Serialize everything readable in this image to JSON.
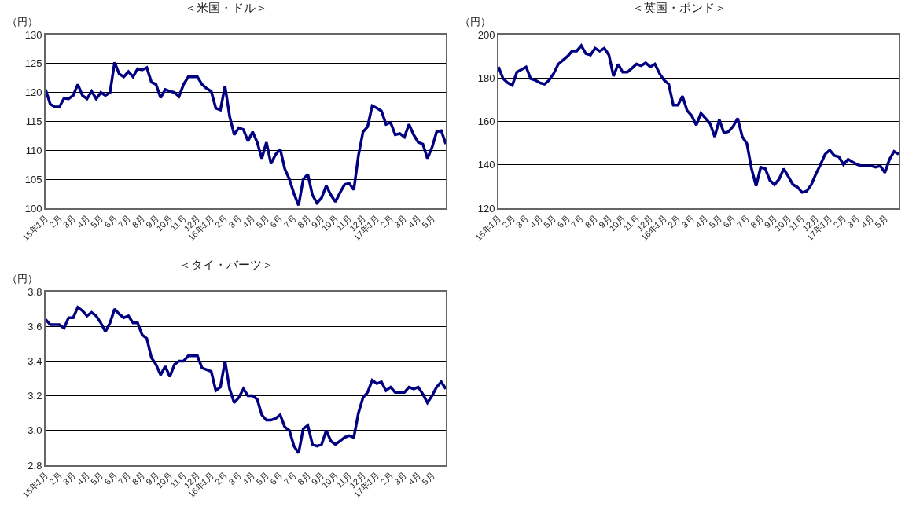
{
  "chart_data": [
    {
      "type": "line",
      "title": "＜米国・ドル＞",
      "ylabel": "（円）",
      "grid": "y",
      "ylim": [
        100,
        130
      ],
      "yticks": [
        100,
        105,
        110,
        115,
        120,
        125,
        130
      ],
      "categories": [
        "15年1月",
        null,
        null,
        "2月",
        null,
        null,
        "3月",
        null,
        null,
        "4月",
        null,
        null,
        "5月",
        null,
        null,
        "6月",
        null,
        null,
        "7月",
        null,
        null,
        "8月",
        null,
        null,
        "9月",
        null,
        null,
        "10月",
        null,
        null,
        "11月",
        null,
        null,
        "12月",
        null,
        null,
        "16年1月",
        null,
        null,
        "2月",
        null,
        null,
        "3月",
        null,
        null,
        "4月",
        null,
        null,
        "5月",
        null,
        null,
        "6月",
        null,
        null,
        "7月",
        null,
        null,
        "8月",
        null,
        null,
        "9月",
        null,
        null,
        "10月",
        null,
        null,
        "11月",
        null,
        null,
        "12月",
        null,
        null,
        "17年1月",
        null,
        null,
        "2月",
        null,
        null,
        "3月",
        null,
        null,
        "4月",
        null,
        null,
        "5月",
        null,
        null,
        null
      ],
      "series": [
        {
          "color": "#000080",
          "values": [
            120.5,
            118,
            117.5,
            117.5,
            119,
            118.9,
            119.5,
            121.4,
            119.5,
            118.9,
            120.2,
            118.9,
            120,
            119.5,
            120,
            125.2,
            123.2,
            122.7,
            123.6,
            122.7,
            124.1,
            123.9,
            124.3,
            121.8,
            121.4,
            119.1,
            120.5,
            120.2,
            120,
            119.3,
            121.4,
            122.7,
            122.7,
            122.7,
            121.4,
            120.7,
            120.2,
            117.3,
            117,
            121.1,
            115.9,
            112.7,
            113.9,
            113.6,
            111.6,
            113.2,
            111.4,
            108.6,
            111.4,
            107.7,
            109.3,
            110.2,
            106.8,
            105,
            102.5,
            100.5,
            105,
            105.9,
            102.3,
            100.9,
            101.8,
            103.9,
            102.3,
            101.1,
            102.7,
            104.1,
            104.3,
            103.2,
            109.1,
            113.2,
            114.1,
            117.7,
            117.3,
            116.8,
            114.5,
            114.8,
            112.7,
            112.9,
            112.3,
            114.5,
            112.7,
            111.4,
            111.1,
            108.6,
            110.5,
            113.2,
            113.4,
            111.1
          ]
        }
      ]
    },
    {
      "type": "line",
      "title": "＜英国・ポンド＞",
      "ylabel": "（円）",
      "grid": "y",
      "ylim": [
        120,
        200
      ],
      "yticks": [
        120,
        140,
        160,
        180,
        200
      ],
      "categories": [
        "15年1月",
        null,
        null,
        "2月",
        null,
        null,
        "3月",
        null,
        null,
        "4月",
        null,
        null,
        "5月",
        null,
        null,
        "6月",
        null,
        null,
        "7月",
        null,
        null,
        "8月",
        null,
        null,
        "9月",
        null,
        null,
        "10月",
        null,
        null,
        "11月",
        null,
        null,
        "12月",
        null,
        null,
        "16年1月",
        null,
        null,
        "2月",
        null,
        null,
        "3月",
        null,
        null,
        "4月",
        null,
        null,
        "5月",
        null,
        null,
        "6月",
        null,
        null,
        "7月",
        null,
        null,
        "8月",
        null,
        null,
        "9月",
        null,
        null,
        "10月",
        null,
        null,
        "11月",
        null,
        null,
        "12月",
        null,
        null,
        "17年1月",
        null,
        null,
        "2月",
        null,
        null,
        "3月",
        null,
        null,
        "4月",
        null,
        null,
        "5月",
        null,
        null,
        null
      ],
      "series": [
        {
          "color": "#000080",
          "values": [
            185.1,
            179.7,
            177.8,
            176.6,
            182.7,
            183.9,
            185.1,
            179.7,
            179,
            177.8,
            177.2,
            179,
            182.1,
            186.4,
            188.2,
            190,
            192.4,
            192.4,
            194.9,
            191.2,
            190.6,
            193.7,
            192.4,
            193.7,
            190.6,
            180.9,
            186.4,
            182.7,
            182.7,
            184.5,
            186.4,
            185.7,
            187,
            185.1,
            186.4,
            182.1,
            179,
            177.2,
            167.5,
            167.5,
            171.7,
            165,
            162.6,
            158.3,
            163.8,
            161.4,
            159,
            152.9,
            160.8,
            154.7,
            155.3,
            157.7,
            161.4,
            152.9,
            149.8,
            138.2,
            130.3,
            138.9,
            138.2,
            132.8,
            130.9,
            133.4,
            138.2,
            134.6,
            130.9,
            129.7,
            127.3,
            127.9,
            130.9,
            135.8,
            140.1,
            144.9,
            146.8,
            144.3,
            143.7,
            140.1,
            142.5,
            141.3,
            140.1,
            139.5,
            139.5,
            139.5,
            138.9,
            139.5,
            136.4,
            142.5,
            146.2,
            144.9
          ]
        }
      ]
    },
    {
      "type": "line",
      "title": "＜タイ・バーツ＞",
      "ylabel": "（円）",
      "grid": "y",
      "ylim": [
        2.8,
        3.8
      ],
      "yticks": [
        {
          "value": 2.8,
          "label": "2.8"
        },
        {
          "value": 3,
          "label": "3.0"
        },
        3.2,
        3.4,
        3.6,
        3.8
      ],
      "categories": [
        "15年1月",
        null,
        null,
        "2月",
        null,
        null,
        "3月",
        null,
        null,
        "4月",
        null,
        null,
        "5月",
        null,
        null,
        "6月",
        null,
        null,
        "7月",
        null,
        null,
        "8月",
        null,
        null,
        "9月",
        null,
        null,
        "10月",
        null,
        null,
        "11月",
        null,
        null,
        "12月",
        null,
        null,
        "16年1月",
        null,
        null,
        "2月",
        null,
        null,
        "3月",
        null,
        null,
        "4月",
        null,
        null,
        "5月",
        null,
        null,
        "6月",
        null,
        null,
        "7月",
        null,
        null,
        "8月",
        null,
        null,
        "9月",
        null,
        null,
        "10月",
        null,
        null,
        "11月",
        null,
        null,
        "12月",
        null,
        null,
        "17年1月",
        null,
        null,
        "2月",
        null,
        null,
        "3月",
        null,
        null,
        "4月",
        null,
        null,
        "5月",
        null,
        null,
        null
      ],
      "series": [
        {
          "color": "#000080",
          "values": [
            3.64,
            3.61,
            3.61,
            3.61,
            3.59,
            3.65,
            3.65,
            3.71,
            3.69,
            3.66,
            3.68,
            3.66,
            3.62,
            3.57,
            3.62,
            3.7,
            3.67,
            3.65,
            3.66,
            3.62,
            3.62,
            3.55,
            3.53,
            3.42,
            3.38,
            3.32,
            3.37,
            3.31,
            3.38,
            3.4,
            3.4,
            3.43,
            3.43,
            3.43,
            3.36,
            3.35,
            3.34,
            3.23,
            3.25,
            3.4,
            3.24,
            3.16,
            3.19,
            3.24,
            3.2,
            3.2,
            3.18,
            3.09,
            3.06,
            3.06,
            3.07,
            3.09,
            3.02,
            3,
            2.91,
            2.87,
            3.01,
            3.03,
            2.92,
            2.91,
            2.92,
            3,
            2.94,
            2.92,
            2.94,
            2.96,
            2.97,
            2.96,
            3.1,
            3.19,
            3.22,
            3.29,
            3.27,
            3.28,
            3.23,
            3.25,
            3.22,
            3.22,
            3.22,
            3.25,
            3.24,
            3.25,
            3.21,
            3.16,
            3.2,
            3.25,
            3.28,
            3.24
          ]
        }
      ]
    }
  ]
}
